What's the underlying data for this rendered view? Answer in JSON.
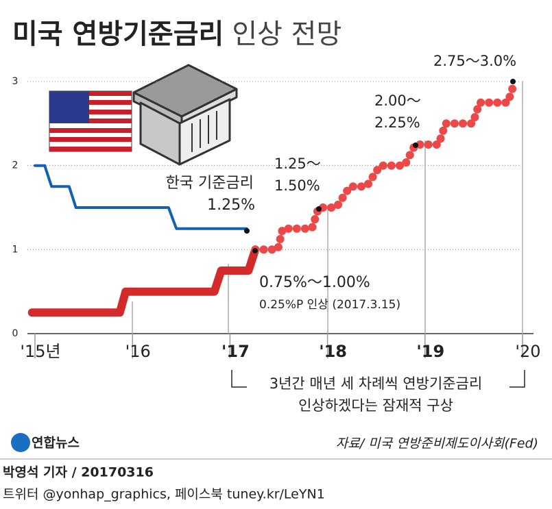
{
  "header": {
    "title_bold": "미국 연방기준금리",
    "title_light": "인상 전망"
  },
  "chart_data": {
    "type": "line",
    "xlim": [
      2015,
      2020
    ],
    "ylim": [
      0,
      3
    ],
    "yticks": [
      0,
      1,
      2,
      3
    ],
    "xticks": [
      {
        "value": 2015,
        "label": "'15년"
      },
      {
        "value": 2016,
        "label": "'16"
      },
      {
        "value": 2017,
        "label": "'17"
      },
      {
        "value": 2018,
        "label": "'18"
      },
      {
        "value": 2019,
        "label": "'19"
      },
      {
        "value": 2020,
        "label": "'20"
      }
    ],
    "grid": true,
    "series": [
      {
        "name": "한국 기준금리",
        "color": "#1560b0",
        "style": "solid",
        "x": [
          2015.0,
          2015.1,
          2015.17,
          2015.35,
          2015.42,
          2016.37,
          2016.45,
          2017.17
        ],
        "values": [
          2,
          2,
          1.75,
          1.75,
          1.5,
          1.5,
          1.25,
          1.25
        ]
      },
      {
        "color": "#d42a2a",
        "style": "solid",
        "x": [
          2014.97,
          2015.87,
          2015.93,
          2016.84,
          2016.91,
          2017.19,
          2017.26
        ],
        "values": [
          0.25,
          0.25,
          0.5,
          0.5,
          0.75,
          0.75,
          1.0
        ]
      },
      {
        "color": "#ec4848",
        "style": "dotted",
        "x": [
          2017.26,
          2017.49,
          2017.54,
          2017.84,
          2017.91,
          2018.09,
          2018.23,
          2018.4,
          2018.54,
          2018.79,
          2018.9,
          2019.14,
          2019.21,
          2019.49,
          2019.56,
          2019.85,
          2019.92
        ],
        "values": [
          1.0,
          1.0,
          1.25,
          1.25,
          1.5,
          1.5,
          1.75,
          1.75,
          2.0,
          2.0,
          2.25,
          2.25,
          2.5,
          2.5,
          2.75,
          2.75,
          3.0
        ]
      }
    ],
    "annotations": [
      {
        "lines": [
          "1.25%"
        ]
      },
      {
        "lines": [
          "0.75%～1.00%"
        ]
      },
      {
        "lines": [
          "0.25%P 인상 (2017.3.15)"
        ]
      },
      {
        "lines": [
          "1.25～",
          "1.50%"
        ]
      },
      {
        "lines": [
          "2.00～",
          "2.25%"
        ]
      },
      {
        "lines": [
          "2.75～3.0%"
        ]
      }
    ],
    "callout": [
      "3년간 매년 세 차례씩 연방기준금리",
      "인상하겠다는 잠재적 구상"
    ],
    "source": "자료/ 미국 연방준비제도이사회(Fed)"
  },
  "footer": {
    "logo": "연합뉴스",
    "byline": "박영석 기자 / 20170316",
    "sns": "트위터 @yonhap_graphics, 페이스북 tuney.kr/LeYN1"
  }
}
